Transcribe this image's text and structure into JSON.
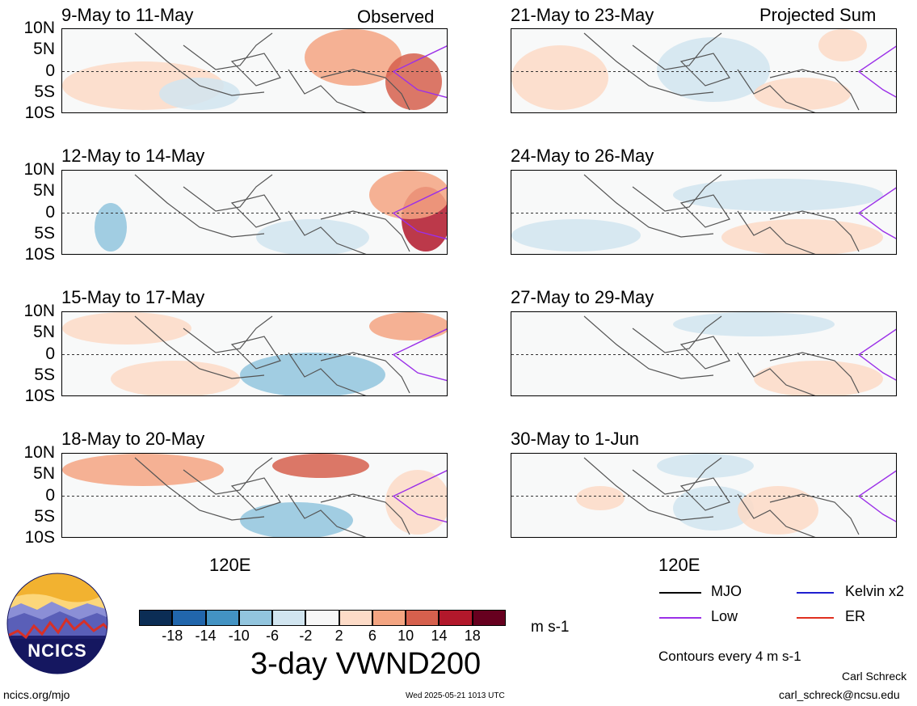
{
  "panels_left": [
    {
      "title": "9-May to 11-May",
      "tag": "Observed"
    },
    {
      "title": "12-May to 14-May",
      "tag": ""
    },
    {
      "title": "15-May to 17-May",
      "tag": ""
    },
    {
      "title": "18-May to 20-May",
      "tag": ""
    }
  ],
  "panels_right": [
    {
      "title": "21-May to 23-May",
      "tag": "Projected Sum"
    },
    {
      "title": "24-May to 26-May",
      "tag": ""
    },
    {
      "title": "27-May to 29-May",
      "tag": ""
    },
    {
      "title": "30-May to 1-Jun",
      "tag": ""
    }
  ],
  "lat_labels": [
    "10N",
    "5N",
    "0",
    "5S",
    "10S"
  ],
  "lon_label": "120E",
  "colorbar": {
    "labels": [
      "-18",
      "-14",
      "-10",
      "-6",
      "-2",
      "2",
      "6",
      "10",
      "14",
      "18"
    ],
    "colors": [
      "#0b2d55",
      "#2166ac",
      "#4393c3",
      "#92c5de",
      "#d1e5f0",
      "#f7f7f7",
      "#fddbc7",
      "#f4a582",
      "#d6604d",
      "#b2182b",
      "#67001f"
    ],
    "unit": "m s-1",
    "title": "3-day VWND200"
  },
  "legend": {
    "items": [
      {
        "label": "MJO",
        "color": "#000000"
      },
      {
        "label": "Kelvin x2",
        "color": "#1f1fd0"
      },
      {
        "label": "Low",
        "color": "#9b30e8"
      },
      {
        "label": "ER",
        "color": "#e03020"
      }
    ],
    "contours_note": "Contours every 4 m s-1"
  },
  "logo_text": "NCICS",
  "footer": {
    "left": "ncics.org/mjo",
    "center": "Wed 2025-05-21 1013 UTC",
    "author": "Carl Schreck",
    "email": "carl_schreck@ncsu.edu"
  }
}
